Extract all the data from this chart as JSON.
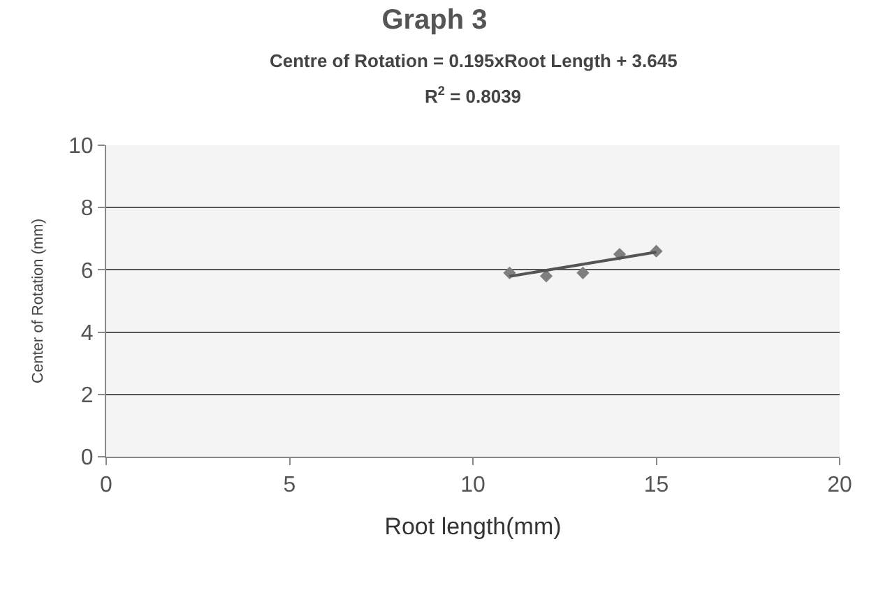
{
  "chart_data": {
    "type": "scatter",
    "title": "Graph 3",
    "subtitle": "Centre of Rotation = 0.195xRoot Length + 3.645",
    "annotations": [
      "R$^{2}$ = 0.8039"
    ],
    "xlabel": "Root length(mm)",
    "ylabel": "Center of Rotation (mm)",
    "series": [
      {
        "color": "#7f7f7f",
        "marker": "diamond",
        "x": [
          11,
          12,
          13,
          14,
          15
        ],
        "values": [
          5.9,
          5.8,
          5.9,
          6.5,
          6.6
        ]
      },
      {
        "type": "line",
        "color": "#555555",
        "marker": "none",
        "x": [
          11,
          15
        ],
        "values": [
          5.79,
          6.57
        ]
      }
    ],
    "xlim": [
      0,
      20
    ],
    "xticks": [
      0,
      5,
      10,
      15,
      20
    ],
    "ylim": [
      0,
      10
    ],
    "yticks": [
      0,
      2,
      4,
      6,
      8,
      10
    ],
    "grid": "y"
  }
}
